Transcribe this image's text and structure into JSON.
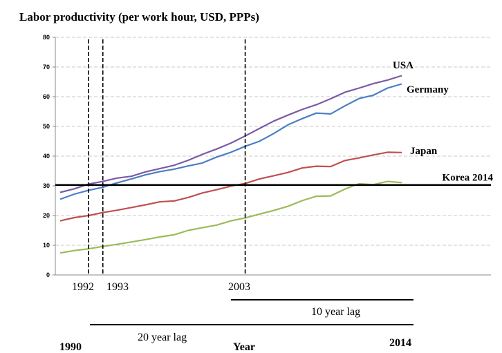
{
  "chart_data": {
    "type": "line",
    "title": "Labor productivity (per work hour, USD, PPPs)",
    "xlabel": "Year",
    "ylim": [
      0,
      80
    ],
    "yticks": [
      0,
      10,
      20,
      30,
      40,
      50,
      60,
      70,
      80
    ],
    "grid": true,
    "x": [
      1990,
      1991,
      1992,
      1993,
      1994,
      1995,
      1996,
      1997,
      1998,
      1999,
      2000,
      2001,
      2002,
      2003,
      2004,
      2005,
      2006,
      2007,
      2008,
      2009,
      2010,
      2011,
      2012,
      2013,
      2014
    ],
    "series": [
      {
        "name": "USA",
        "color": "#7b5aa6",
        "values": [
          27.8,
          29.0,
          30.6,
          31.5,
          32.6,
          33.2,
          34.7,
          35.8,
          36.9,
          38.6,
          40.6,
          42.4,
          44.4,
          46.8,
          49.3,
          51.8,
          53.8,
          55.7,
          57.3,
          59.3,
          61.5,
          62.9,
          64.4,
          65.6,
          67.1
        ]
      },
      {
        "name": "Germany",
        "color": "#4a7ec2",
        "values": [
          25.5,
          27.2,
          28.5,
          29.5,
          31.0,
          32.3,
          33.7,
          34.8,
          35.6,
          36.7,
          37.7,
          39.7,
          41.3,
          43.3,
          45.0,
          47.6,
          50.5,
          52.6,
          54.5,
          54.2,
          56.9,
          59.4,
          60.5,
          62.9,
          64.3
        ]
      },
      {
        "name": "Japan",
        "color": "#c0504d",
        "values": [
          18.2,
          19.3,
          20.0,
          21.0,
          21.8,
          22.7,
          23.6,
          24.6,
          24.9,
          26.1,
          27.6,
          28.7,
          29.9,
          30.8,
          32.3,
          33.4,
          34.5,
          36.0,
          36.6,
          36.5,
          38.5,
          39.4,
          40.4,
          41.3,
          41.2
        ]
      },
      {
        "name": "",
        "color": "#9bbb59",
        "values": [
          7.4,
          8.2,
          8.8,
          9.6,
          10.3,
          11.1,
          11.9,
          12.8,
          13.5,
          15.0,
          15.9,
          16.8,
          18.2,
          19.2,
          20.5,
          21.7,
          23.1,
          25.0,
          26.5,
          26.6,
          28.9,
          30.7,
          30.4,
          31.5,
          31.1
        ]
      }
    ],
    "reference_line": {
      "label": "Korea 2014",
      "value": 30.3
    },
    "markers": [
      {
        "label": "1992",
        "x": 1992
      },
      {
        "label": "1993",
        "x": 1993
      },
      {
        "label": "2003",
        "x": 2003
      }
    ],
    "lags": [
      {
        "label": "10 year lag",
        "from": 2003,
        "to": 2014
      },
      {
        "label": "20 year lag",
        "from": 1993,
        "to": 2014
      }
    ],
    "bottom_labels": {
      "start": "1990",
      "end": "2014"
    }
  }
}
